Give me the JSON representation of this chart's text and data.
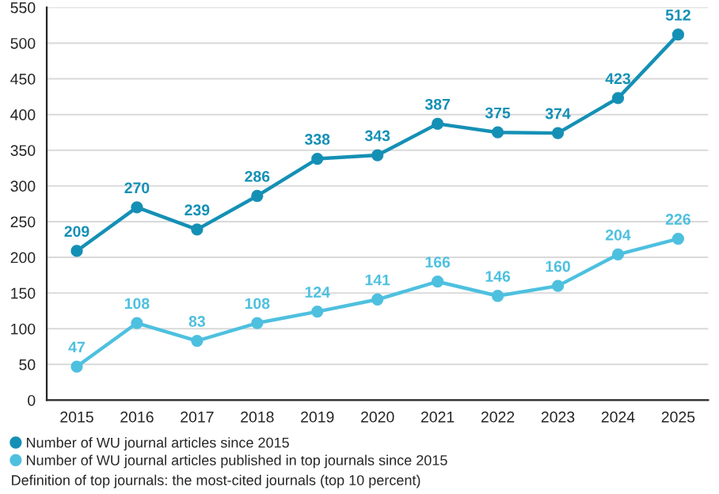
{
  "chart_data": {
    "type": "line",
    "categories": [
      "2015",
      "2016",
      "2017",
      "2018",
      "2019",
      "2020",
      "2021",
      "2022",
      "2023",
      "2024",
      "2025"
    ],
    "series": [
      {
        "name": "Number of WU journal articles since 2015",
        "color": "#1590b5",
        "values": [
          209,
          270,
          239,
          286,
          338,
          343,
          387,
          375,
          374,
          423,
          512
        ]
      },
      {
        "name": "Number of WU journal articles published in top journals since 2015",
        "color": "#4ec0df",
        "values": [
          47,
          108,
          83,
          108,
          124,
          141,
          166,
          146,
          160,
          204,
          226
        ]
      }
    ],
    "ylim": [
      0,
      550
    ],
    "yticks": [
      0,
      50,
      100,
      150,
      200,
      250,
      300,
      350,
      400,
      450,
      500,
      550
    ],
    "grid": "y",
    "marker": "circle",
    "line_style": "solid",
    "data_labels": true,
    "legend": "bottom",
    "annotations": [
      "Definition of top journals: the most-cited journals (top 10 percent)"
    ]
  }
}
